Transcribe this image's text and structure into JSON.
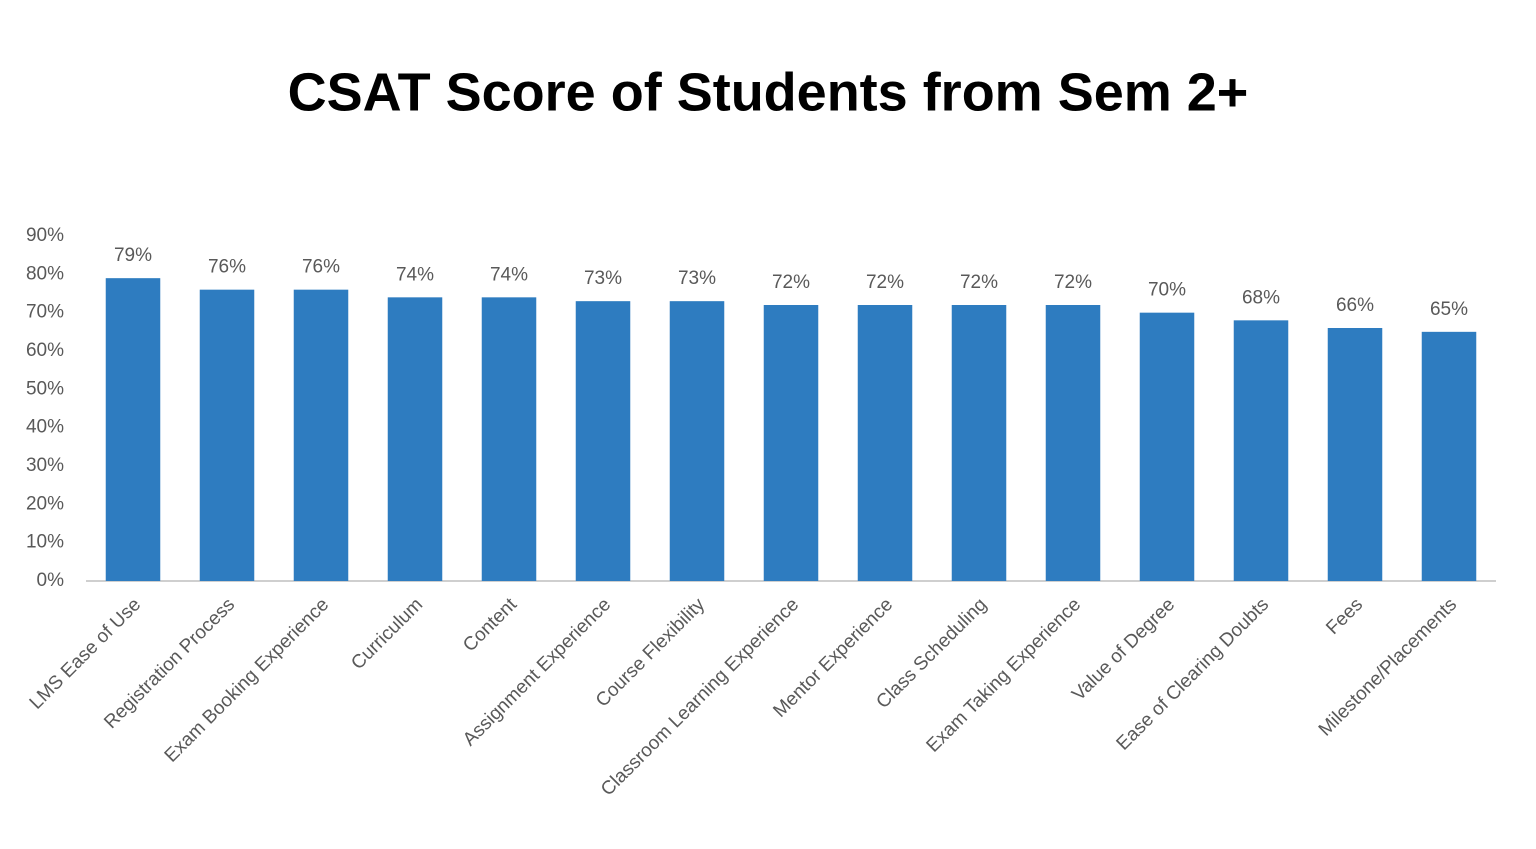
{
  "chart_data": {
    "type": "bar",
    "title": "CSAT Score of Students from Sem 2+",
    "categories": [
      "LMS Ease of Use",
      "Registration Process",
      "Exam Booking Experience",
      "Curriculum",
      "Content",
      "Assignment Experience",
      "Course Flexibility",
      "Classroom Learning Experience",
      "Mentor Experience",
      "Class Scheduling",
      "Exam Taking Experience",
      "Value of Degree",
      "Ease of Clearing Doubts",
      "Fees",
      "Milestone/Placements"
    ],
    "values": [
      79,
      76,
      76,
      74,
      74,
      73,
      73,
      72,
      72,
      72,
      72,
      70,
      68,
      66,
      65
    ],
    "value_labels": [
      "79%",
      "76%",
      "76%",
      "74%",
      "74%",
      "73%",
      "73%",
      "72%",
      "72%",
      "72%",
      "72%",
      "70%",
      "68%",
      "66%",
      "65%"
    ],
    "color": "#2e7cc0",
    "ylim": [
      0,
      90
    ],
    "yticks": [
      {
        "value": 0,
        "label": "0%"
      },
      {
        "value": 10,
        "label": "10%"
      },
      {
        "value": 20,
        "label": "20%"
      },
      {
        "value": 30,
        "label": "30%"
      },
      {
        "value": 40,
        "label": "40%"
      },
      {
        "value": 50,
        "label": "50%"
      },
      {
        "value": 60,
        "label": "60%"
      },
      {
        "value": 70,
        "label": "70%"
      },
      {
        "value": 80,
        "label": "80%"
      },
      {
        "value": 90,
        "label": "90%"
      }
    ],
    "grid": false
  }
}
